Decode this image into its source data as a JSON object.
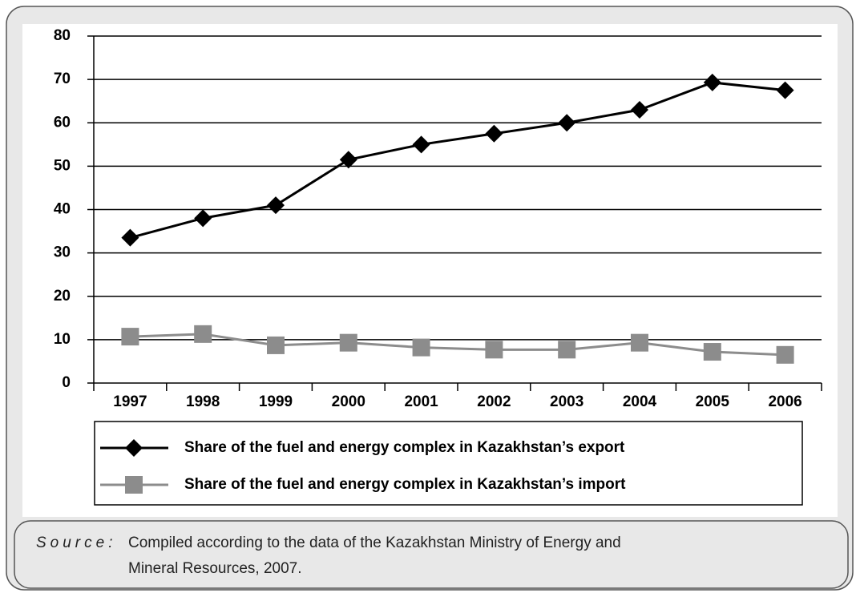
{
  "chart_data": {
    "type": "line",
    "categories": [
      "1997",
      "1998",
      "1999",
      "2000",
      "2001",
      "2002",
      "2003",
      "2004",
      "2005",
      "2006"
    ],
    "series": [
      {
        "name": "Share of the fuel and energy complex in Kazakhstan’s export",
        "color": "#000000",
        "marker": "diamond",
        "values": [
          33.5,
          38,
          41,
          51.5,
          55,
          57.5,
          60,
          63,
          69.3,
          67.5
        ]
      },
      {
        "name": "Share of the fuel and energy complex in Kazakhstan’s import",
        "color": "#8c8c8c",
        "marker": "square",
        "values": [
          10.7,
          11.3,
          8.7,
          9.3,
          8.2,
          7.7,
          7.7,
          9.3,
          7.2,
          6.5
        ]
      }
    ],
    "ylim": [
      0,
      80
    ],
    "yticks": [
      0,
      10,
      20,
      30,
      40,
      50,
      60,
      70,
      80
    ],
    "grid": true,
    "legend": "bottom",
    "source_label": "Source:",
    "source": [
      "Compiled according to the data of the Kazakhstan Ministry of Energy and",
      "Mineral Resources, 2007."
    ]
  }
}
